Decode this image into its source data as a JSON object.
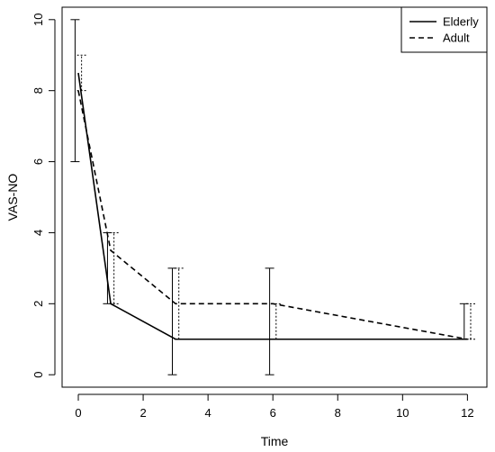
{
  "chart_data": {
    "type": "line",
    "xlabel": "Time",
    "ylabel": "VAS-NO",
    "xlim": [
      -0.5,
      12.6
    ],
    "ylim": [
      -0.35,
      10.35
    ],
    "x_ticks": [
      0,
      2,
      4,
      6,
      8,
      10,
      12
    ],
    "y_ticks": [
      0,
      2,
      4,
      6,
      8,
      10
    ],
    "legend": {
      "position": "top-right",
      "entries": [
        "Elderly",
        "Adult"
      ]
    },
    "grid": false,
    "series": [
      {
        "name": "Elderly",
        "line_style": "solid",
        "x": [
          0,
          1,
          3,
          6,
          12
        ],
        "y": [
          8.5,
          2,
          1,
          1,
          1
        ],
        "error_low": [
          6,
          2,
          0,
          0,
          1
        ],
        "error_high": [
          10,
          4,
          3,
          3,
          2
        ],
        "error_x_offset": -0.1
      },
      {
        "name": "Adult",
        "line_style": "dashed",
        "x": [
          0,
          1,
          3,
          6,
          12
        ],
        "y": [
          8,
          3.5,
          2,
          2,
          1
        ],
        "error_low": [
          8,
          2,
          1,
          1,
          1
        ],
        "error_high": [
          9,
          4,
          3,
          2,
          2
        ],
        "error_x_offset": 0.1
      }
    ]
  }
}
